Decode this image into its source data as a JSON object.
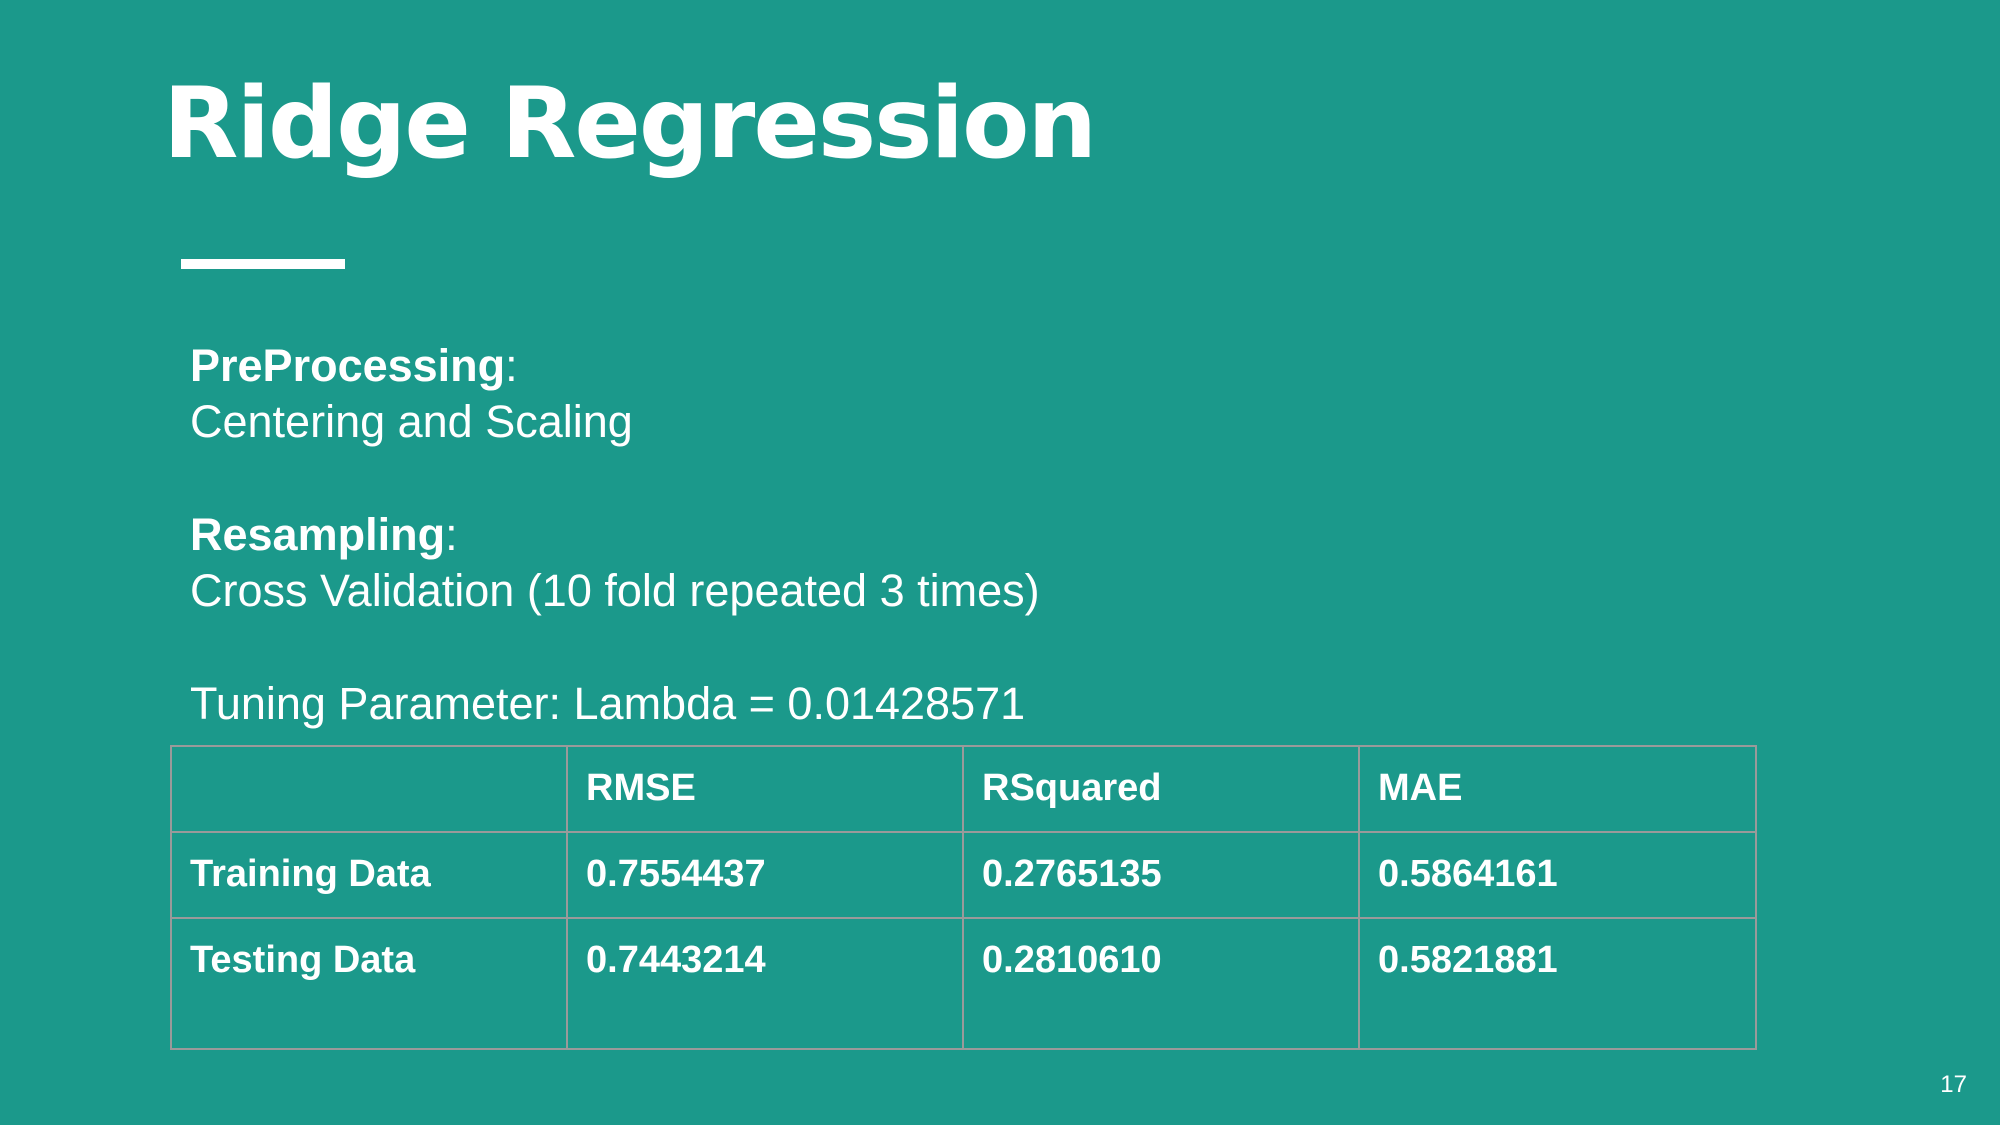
{
  "slide": {
    "title": "Ridge Regression",
    "page_number": "17"
  },
  "preprocessing": {
    "label": "PreProcessing",
    "separator": ":",
    "value": "Centering and Scaling"
  },
  "resampling": {
    "label": "Resampling",
    "separator": ":",
    "value": "Cross Validation (10 fold repeated 3 times)"
  },
  "tuning": {
    "text": "Tuning Parameter: Lambda = 0.01428571"
  },
  "table": {
    "header": [
      "",
      "RMSE",
      "RSquared",
      "MAE"
    ],
    "rows": [
      [
        "Training Data",
        "0.7554437",
        "0.2765135",
        "0.5864161"
      ],
      [
        "Testing Data",
        "0.7443214",
        "0.2810610",
        "0.5821881"
      ]
    ]
  },
  "colors": {
    "background": "#1b998b",
    "text": "#ffffff",
    "table_border": "#9a9a9a"
  }
}
